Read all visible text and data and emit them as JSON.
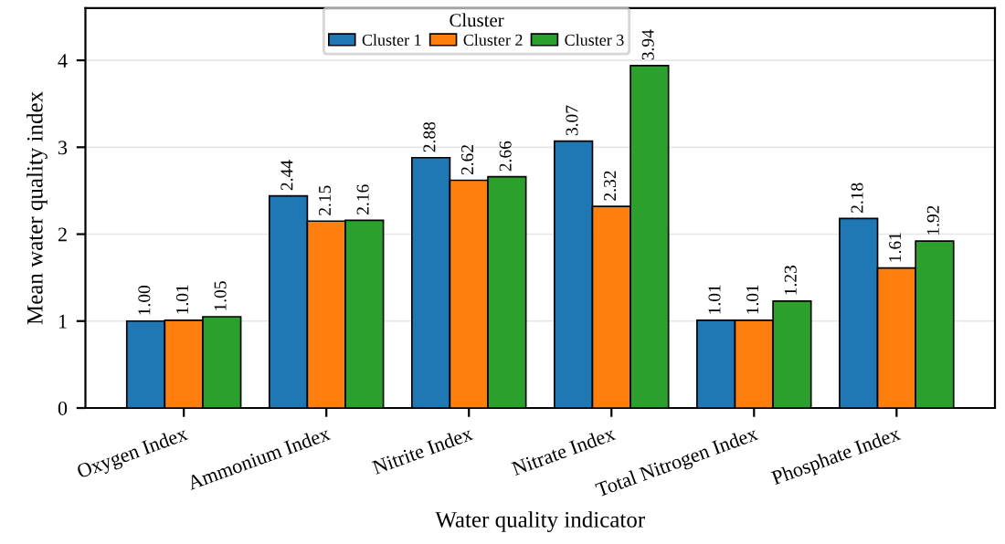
{
  "chart_data": {
    "type": "bar",
    "xlabel": "Water quality indicator",
    "ylabel": "Mean water quality index",
    "legend_title": "Cluster",
    "categories": [
      "Oxygen Index",
      "Ammonium Index",
      "Nitrite Index",
      "Nitrate Index",
      "Total Nitrogen Index",
      "Phosphate Index"
    ],
    "series": [
      {
        "name": "Cluster 1",
        "color": "#1f77b4",
        "values": [
          1.0,
          2.44,
          2.88,
          3.07,
          1.01,
          2.18
        ],
        "value_labels": [
          "1.00",
          "2.44",
          "2.88",
          "3.07",
          "1.01",
          "2.18"
        ]
      },
      {
        "name": "Cluster 2",
        "color": "#ff7f0e",
        "values": [
          1.01,
          2.15,
          2.62,
          2.32,
          1.01,
          1.61
        ],
        "value_labels": [
          "1.01",
          "2.15",
          "2.62",
          "2.32",
          "1.01",
          "1.61"
        ]
      },
      {
        "name": "Cluster 3",
        "color": "#2ca02c",
        "values": [
          1.05,
          2.16,
          2.66,
          3.94,
          1.23,
          1.92
        ],
        "value_labels": [
          "1.05",
          "2.16",
          "2.66",
          "3.94",
          "1.23",
          "1.92"
        ]
      }
    ],
    "ylim": [
      0,
      4.6
    ],
    "yticks": [
      0,
      1,
      2,
      3,
      4
    ],
    "grid": "y",
    "legend": "top"
  }
}
